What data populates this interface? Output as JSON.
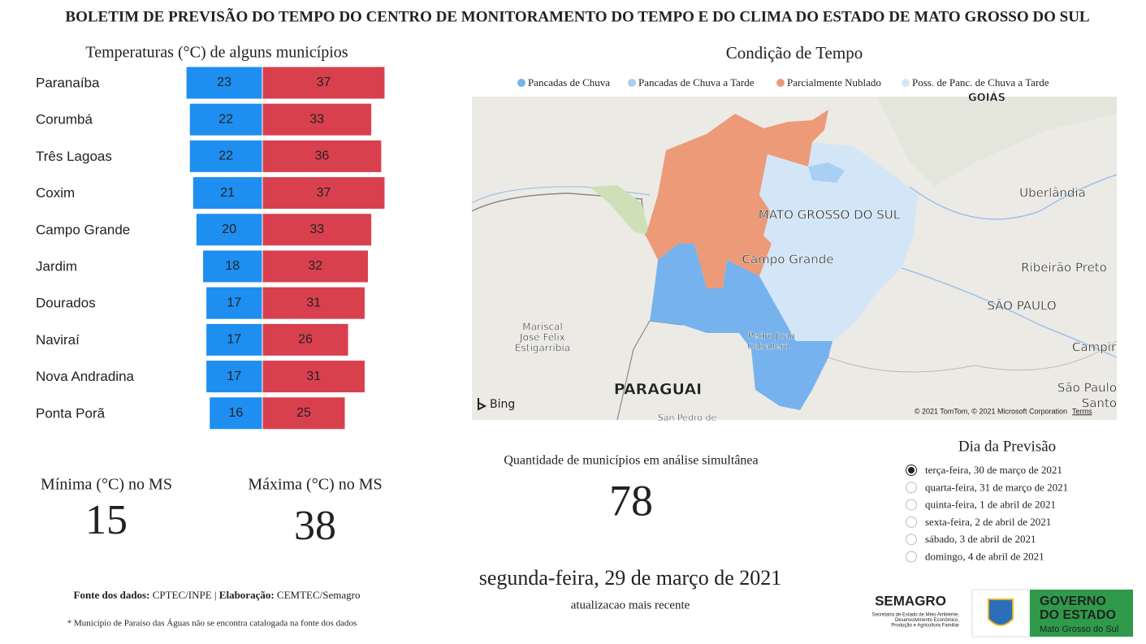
{
  "header": {
    "title": "BOLETIM DE PREVISÃO DO TEMPO DO CENTRO DE MONITORAMENTO DO TEMPO E DO CLIMA DO ESTADO DE MATO GROSSO DO SUL"
  },
  "chart_data": {
    "type": "bar",
    "title": "Temperaturas (°C) de alguns municípios",
    "categories": [
      "Paranaíba",
      "Corumbá",
      "Três Lagoas",
      "Coxim",
      "Campo Grande",
      "Jardim",
      "Dourados",
      "Naviraí",
      "Nova Andradina",
      "Ponta Porã"
    ],
    "series": [
      {
        "color": "#1e8ff0",
        "values": [
          23,
          22,
          22,
          21,
          20,
          18,
          17,
          17,
          17,
          16
        ]
      },
      {
        "color": "#d9404e",
        "values": [
          37,
          33,
          36,
          37,
          33,
          32,
          31,
          26,
          31,
          25
        ]
      }
    ]
  },
  "map": {
    "title": "Condição de Tempo",
    "legend": [
      {
        "label": "Pancadas de Chuva",
        "color": "#76b3ee"
      },
      {
        "label": "Pancadas de Chuva a Tarde",
        "color": "#a9d0f3"
      },
      {
        "label": "Parcialmente Nublado",
        "color": "#ec9a78"
      },
      {
        "label": "Poss. de Panc. de Chuva a Tarde",
        "color": "#d3e6f8"
      }
    ],
    "labels": [
      "GOIÁS",
      "Uberlândia",
      "MATO GROSSO DO SUL",
      "Campo Grande",
      "Ribeirão Preto",
      "SÃO PAULO",
      "Mariscal",
      "José Félix",
      "Estigarribia",
      "Pedro Juan",
      "Caballero",
      "PARAGUAI",
      "Campir",
      "São Paulo",
      "Santo",
      "San Pedro de"
    ],
    "logo": "Bing",
    "attribution": "© 2021 TomTom, © 2021 Microsoft Corporation",
    "terms": "Terms"
  },
  "minimum": {
    "label": "Mínima (°C) no MS",
    "value": 15
  },
  "maximum": {
    "label": "Máxima (°C) no MS",
    "value": 38
  },
  "count": {
    "label": "Quantidade de municípios em análise simultânea",
    "value": 78
  },
  "day_selector": {
    "title": "Dia da Previsão",
    "options": [
      "terça-feira, 30 de março de 2021",
      "quarta-feira, 31 de março de 2021",
      "quinta-feira, 1 de abril de 2021",
      "sexta-feira, 2 de abril de 2021",
      "sábado, 3 de abril de 2021",
      "domingo, 4 de abril de 2021"
    ],
    "selected": 0
  },
  "update": {
    "date": "segunda-feira, 29 de março de 2021",
    "caption": "atualizacao mais recente"
  },
  "footer": {
    "source_label": "Fonte dos dados:",
    "source": "CPTEC/INPE",
    "separator": "|",
    "author_label": "Elaboração:",
    "author": "CEMTEC/Semagro",
    "note": "* Município de Paraíso das Águas não se encontra catalogada na fonte dos dados"
  },
  "logos": {
    "semagro": "SEMAGRO",
    "semagro_lines": [
      "Secretaria de Estado de Meio Ambiente,",
      "Desenvolvimento Econômico,",
      "Produção e Agricultura Familiar"
    ],
    "government": [
      "GOVERNO",
      "DO ESTADO",
      "Mato Grosso do Sul"
    ]
  }
}
